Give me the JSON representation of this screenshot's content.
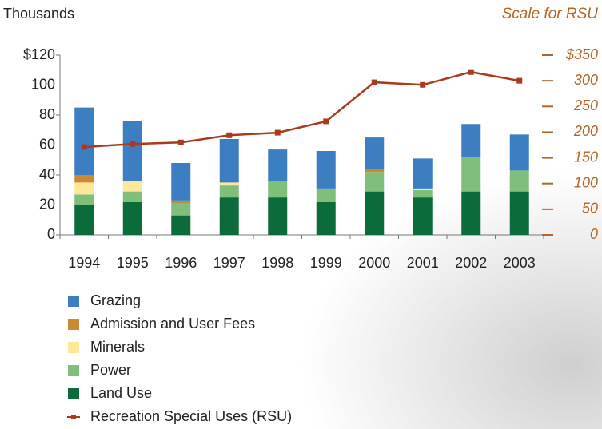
{
  "chart_data": {
    "type": "bar",
    "y_unit_label": "Thousands",
    "y2_label": "Scale for RSU",
    "categories": [
      "1994",
      "1995",
      "1996",
      "1997",
      "1998",
      "1999",
      "2000",
      "2001",
      "2002",
      "2003"
    ],
    "series": [
      {
        "name": "Grazing",
        "color": "#3b7fc2",
        "values": [
          45,
          40,
          25,
          29,
          21,
          25,
          21,
          20,
          22,
          24
        ]
      },
      {
        "name": "Admission and User Fees",
        "color": "#c98a32",
        "values": [
          5,
          0,
          2,
          0,
          0,
          0,
          2,
          0,
          0,
          0
        ]
      },
      {
        "name": "Minerals",
        "color": "#fde89a",
        "values": [
          8,
          7,
          0,
          2,
          0,
          0,
          0,
          1,
          0,
          0
        ]
      },
      {
        "name": "Power",
        "color": "#7fbf7a",
        "values": [
          7,
          7,
          8,
          8,
          11,
          9,
          13,
          5,
          23,
          14
        ]
      },
      {
        "name": "Land Use",
        "color": "#0b6b3a",
        "values": [
          20,
          22,
          13,
          25,
          25,
          22,
          29,
          25,
          29,
          29
        ]
      },
      {
        "name": "Recreation Special Uses (RSU)",
        "color": "#a83a1e",
        "type": "line",
        "axis": "y2",
        "values": [
          171,
          177,
          180,
          194,
          199,
          221,
          297,
          292,
          317,
          300
        ]
      }
    ],
    "ylim": [
      0,
      120
    ],
    "yticks": [
      0,
      20,
      40,
      60,
      80,
      100,
      {
        "value": 120,
        "label": "$120"
      }
    ],
    "y2lim": [
      0,
      350
    ],
    "y2ticks": [
      {
        "value": 0,
        "label": "0"
      },
      50,
      100,
      150,
      200,
      250,
      300,
      {
        "value": 350,
        "label": "$350"
      }
    ]
  }
}
